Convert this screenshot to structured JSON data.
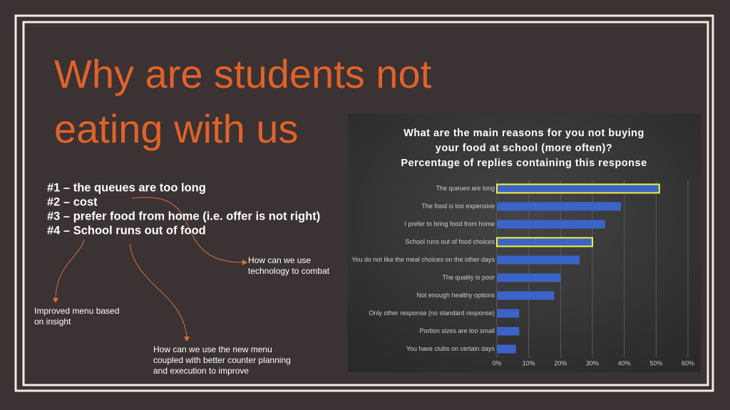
{
  "slide": {
    "title": [
      "Why are students not",
      "eating with us"
    ],
    "bullets": [
      "#1 – the queues are too long",
      "#2 – cost",
      "#3 – prefer food from home (i.e. offer is not right)",
      "#4 – School runs out of food"
    ],
    "notes": [
      [
        "How can we use",
        "technology to combat"
      ],
      [
        "Improved menu based",
        "on insight"
      ],
      [
        "How can we use the new menu",
        "coupled with better counter planning",
        "and execution to improve"
      ]
    ]
  },
  "chart_data": {
    "type": "hbar",
    "title": [
      "What are the main reasons for you not buying",
      "your food at school (more often)?",
      "Percentage of replies containing this response"
    ],
    "categories": [
      "The queues are long",
      "The food is too expensive",
      "I prefer to bring food from home",
      "School runs out of food choices",
      "You do not like the meal choices on the other days",
      "The quality is poor",
      "Not enough healthy options",
      "Only other response (no standard response)",
      "Portion sizes are too small",
      "You have clubs on certain days"
    ],
    "values": [
      51,
      39,
      34,
      30,
      26,
      20,
      18,
      7,
      7,
      6
    ],
    "color": "#3a64c8",
    "highlight_indices": [
      0,
      3
    ],
    "highlight_color": "#f2f23a",
    "xlim": [
      0,
      60
    ],
    "xticks": [
      {
        "value": 0,
        "label": "0%"
      },
      {
        "value": 10,
        "label": "10%"
      },
      {
        "value": 20,
        "label": "20%"
      },
      {
        "value": 30,
        "label": "30%"
      },
      {
        "value": 40,
        "label": "40%"
      },
      {
        "value": 50,
        "label": "50%"
      },
      {
        "value": 60,
        "label": "60%"
      }
    ],
    "grid": true
  }
}
